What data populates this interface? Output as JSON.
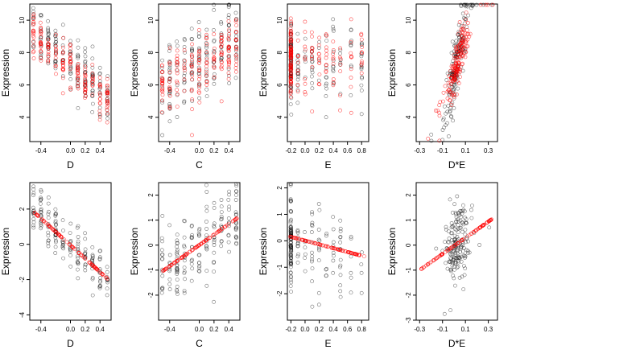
{
  "chart_data": [
    {
      "type": "scatter",
      "row": 1,
      "col": 1,
      "xlabel": "D",
      "ylabel": "Expression",
      "xlim": [
        -0.55,
        0.55
      ],
      "ylim": [
        2.5,
        11
      ],
      "xticks": [
        -0.4,
        0.0,
        0.2,
        0.4
      ],
      "xtick_labels": [
        "-0.4",
        "0.0",
        "0.2",
        "0.4"
      ],
      "yticks": [
        4,
        6,
        8,
        10
      ],
      "ytick_labels": [
        "4",
        "6",
        "8",
        "10"
      ],
      "x_levels": [
        -0.5,
        -0.4,
        -0.3,
        -0.2,
        -0.1,
        0.0,
        0.1,
        0.2,
        0.3,
        0.4,
        0.5
      ],
      "series": [
        {
          "color": "#000000",
          "trend": [
            [
              -0.5,
              9.4
            ],
            [
              0.5,
              5.3
            ]
          ],
          "spread": 0.9
        },
        {
          "color": "#ff0000",
          "trend": [
            [
              -0.5,
              9.2
            ],
            [
              0.5,
              5.0
            ]
          ],
          "spread": 0.6
        }
      ]
    },
    {
      "type": "scatter",
      "row": 1,
      "col": 2,
      "xlabel": "C",
      "ylabel": "Expression",
      "xlim": [
        -0.55,
        0.55
      ],
      "ylim": [
        2.5,
        11
      ],
      "xticks": [
        -0.4,
        0.0,
        0.2,
        0.4
      ],
      "xtick_labels": [
        "-0.4",
        "0.0",
        "0.2",
        "0.4"
      ],
      "yticks": [
        4,
        6,
        8,
        10
      ],
      "ytick_labels": [
        "4",
        "6",
        "8",
        "10"
      ],
      "x_levels": [
        -0.5,
        -0.4,
        -0.3,
        -0.2,
        -0.1,
        0.0,
        0.1,
        0.2,
        0.3,
        0.4,
        0.5
      ],
      "series": [
        {
          "color": "#000000",
          "trend": [
            [
              -0.5,
              6.2
            ],
            [
              0.5,
              8.6
            ]
          ],
          "spread": 1.3
        },
        {
          "color": "#ff0000",
          "trend": [
            [
              -0.5,
              6.0
            ],
            [
              0.5,
              8.3
            ]
          ],
          "spread": 1.0
        }
      ]
    },
    {
      "type": "scatter",
      "row": 1,
      "col": 3,
      "xlabel": "E",
      "ylabel": "Expression",
      "xlim": [
        -0.25,
        0.9
      ],
      "ylim": [
        2.5,
        11
      ],
      "xticks": [
        -0.2,
        0.0,
        0.2,
        0.4,
        0.6,
        0.8
      ],
      "xtick_labels": [
        "-0.2",
        "0.0",
        "0.2",
        "0.4",
        "0.6",
        "0.8"
      ],
      "yticks": [
        4,
        6,
        8,
        10
      ],
      "ytick_labels": [
        "4",
        "6",
        "8",
        "10"
      ],
      "x_levels": [
        -0.2,
        -0.1,
        0.0,
        0.1,
        0.2,
        0.3,
        0.4,
        0.5,
        0.65,
        0.8
      ],
      "series": [
        {
          "color": "#000000",
          "trend": [
            [
              -0.2,
              7.5
            ],
            [
              0.8,
              7.5
            ]
          ],
          "spread": 1.2
        },
        {
          "color": "#ff0000",
          "trend": [
            [
              -0.2,
              7.4
            ],
            [
              0.8,
              7.6
            ]
          ],
          "spread": 1.1
        }
      ]
    },
    {
      "type": "scatter",
      "row": 1,
      "col": 4,
      "xlabel": "D*E",
      "ylabel": "Expression",
      "xlim": [
        -0.33,
        0.38
      ],
      "ylim": [
        2.5,
        11
      ],
      "xticks": [
        -0.3,
        -0.1,
        0.1,
        0.3
      ],
      "xtick_labels": [
        "-0.3",
        "-0.1",
        "0.1",
        "0.3"
      ],
      "yticks": [
        4,
        6,
        8,
        10
      ],
      "ytick_labels": [
        "4",
        "6",
        "8",
        "10"
      ],
      "x_center": 0.03,
      "x_spread": 0.05,
      "series": [
        {
          "color": "#000000",
          "trend": [
            [
              -0.05,
              5.2
            ],
            [
              0.1,
              9.8
            ]
          ],
          "spread": 1.0
        },
        {
          "color": "#ff0000",
          "trend": [
            [
              -0.05,
              5.8
            ],
            [
              0.1,
              8.8
            ]
          ],
          "spread": 0.7
        }
      ]
    },
    {
      "type": "scatter",
      "row": 2,
      "col": 1,
      "xlabel": "D",
      "ylabel": "Expression",
      "xlim": [
        -0.55,
        0.55
      ],
      "ylim": [
        -4.3,
        3.5
      ],
      "xticks": [
        -0.4,
        0.0,
        0.2,
        0.4
      ],
      "xtick_labels": [
        "-0.4",
        "0.0",
        "0.2",
        "0.4"
      ],
      "yticks": [
        -4,
        -2,
        0,
        2
      ],
      "ytick_labels": [
        "-4",
        "-2",
        "0",
        "2"
      ],
      "x_levels": [
        -0.5,
        -0.4,
        -0.3,
        -0.2,
        -0.1,
        0.0,
        0.1,
        0.2,
        0.3,
        0.4,
        0.5
      ],
      "series": [
        {
          "color": "#000000",
          "trend": [
            [
              -0.5,
              2.0
            ],
            [
              0.5,
              -2.0
            ]
          ],
          "spread": 0.7
        },
        {
          "color": "#ff0000",
          "trend": [
            [
              -0.5,
              1.85
            ],
            [
              0.5,
              -1.95
            ]
          ],
          "spread": 0.0
        }
      ]
    },
    {
      "type": "scatter",
      "row": 2,
      "col": 2,
      "xlabel": "C",
      "ylabel": "Expression",
      "xlim": [
        -0.55,
        0.55
      ],
      "ylim": [
        -3.0,
        2.5
      ],
      "xticks": [
        -0.4,
        0.0,
        0.2,
        0.4
      ],
      "xtick_labels": [
        "-0.4",
        "0.0",
        "0.2",
        "0.4"
      ],
      "yticks": [
        -2,
        -1,
        0,
        1,
        2
      ],
      "ytick_labels": [
        "-2",
        "-1",
        "0",
        "1",
        "2"
      ],
      "x_levels": [
        -0.5,
        -0.4,
        -0.3,
        -0.2,
        -0.1,
        0.0,
        0.1,
        0.2,
        0.3,
        0.4,
        0.5
      ],
      "series": [
        {
          "color": "#000000",
          "trend": [
            [
              -0.5,
              -1.1
            ],
            [
              0.5,
              1.1
            ]
          ],
          "spread": 0.8
        },
        {
          "color": "#ff0000",
          "trend": [
            [
              -0.5,
              -1.05
            ],
            [
              0.5,
              1.05
            ]
          ],
          "spread": 0.0
        }
      ]
    },
    {
      "type": "scatter",
      "row": 2,
      "col": 3,
      "xlabel": "E",
      "ylabel": "Expression",
      "xlim": [
        -0.25,
        0.9
      ],
      "ylim": [
        -3.0,
        2.2
      ],
      "xticks": [
        -0.2,
        0.0,
        0.2,
        0.4,
        0.6,
        0.8
      ],
      "xtick_labels": [
        "-0.2",
        "0.0",
        "0.2",
        "0.4",
        "0.6",
        "0.8"
      ],
      "yticks": [
        -2,
        -1,
        0,
        1,
        2
      ],
      "ytick_labels": [
        "-2",
        "-1",
        "0",
        "1",
        "2"
      ],
      "x_levels": [
        -0.2,
        -0.1,
        0.0,
        0.1,
        0.2,
        0.3,
        0.4,
        0.5,
        0.65,
        0.8
      ],
      "series": [
        {
          "color": "#000000",
          "trend": [
            [
              -0.2,
              0.1
            ],
            [
              0.8,
              -0.6
            ]
          ],
          "spread": 0.8
        },
        {
          "color": "#ff0000",
          "trend": [
            [
              -0.2,
              0.15
            ],
            [
              0.85,
              -0.6
            ]
          ],
          "spread": 0.0
        }
      ]
    },
    {
      "type": "scatter",
      "row": 2,
      "col": 4,
      "xlabel": "D*E",
      "ylabel": "Expression",
      "xlim": [
        -0.33,
        0.38
      ],
      "ylim": [
        -3.0,
        2.5
      ],
      "xticks": [
        -0.3,
        -0.1,
        0.1,
        0.3
      ],
      "xtick_labels": [
        "-0.3",
        "-0.1",
        "0.1",
        "0.3"
      ],
      "yticks": [
        -3,
        -2,
        -1,
        0,
        1,
        2
      ],
      "ytick_labels": [
        "-3",
        "-2",
        "-1",
        "0",
        "1",
        "2"
      ],
      "x_center": 0.03,
      "x_spread": 0.05,
      "series": [
        {
          "color": "#000000",
          "trend": [
            [
              -0.3,
              -1.0
            ],
            [
              0.35,
              1.1
            ]
          ],
          "spread": 0.8
        },
        {
          "color": "#ff0000",
          "trend": [
            [
              -0.3,
              -1.0
            ],
            [
              0.35,
              1.1
            ]
          ],
          "spread": 0.0
        }
      ]
    }
  ]
}
